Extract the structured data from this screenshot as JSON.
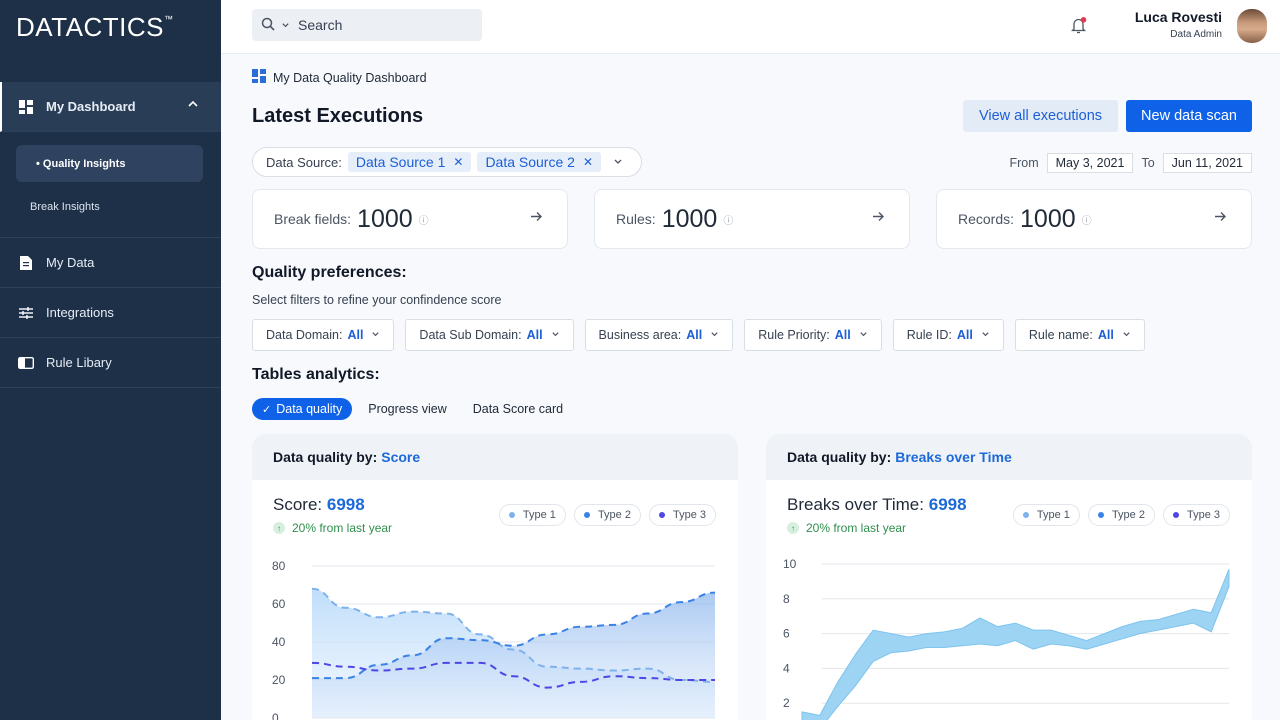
{
  "brand": {
    "logo": "DATACTICS",
    "tm": "™"
  },
  "sidebar": {
    "dashboard_label": "My Dashboard",
    "sub": [
      "Quality Insights",
      "Break Insights"
    ],
    "items": [
      "My Data",
      "Integrations",
      "Rule Libary"
    ]
  },
  "header": {
    "search_label": "Search",
    "user_name": "Luca Rovesti",
    "user_role": "Data Admin"
  },
  "breadcrumb": "My Data Quality Dashboard",
  "page_title": "Latest Executions",
  "buttons": {
    "view_all": "View all executions",
    "new_scan": "New data scan"
  },
  "data_source": {
    "label": "Data Source:",
    "chips": [
      "Data Source 1",
      "Data Source 2"
    ]
  },
  "dates": {
    "from_label": "From",
    "from": "May 3, 2021",
    "to_label": "To",
    "to": "Jun 11, 2021"
  },
  "stats": [
    {
      "label": "Break fields:",
      "value": "1000"
    },
    {
      "label": "Rules:",
      "value": "1000"
    },
    {
      "label": "Records:",
      "value": "1000"
    }
  ],
  "quality": {
    "title": "Quality preferences:",
    "subtitle": "Select filters to refine your confindence score"
  },
  "filters": [
    {
      "label": "Data Domain:",
      "value": "All"
    },
    {
      "label": "Data Sub Domain:",
      "value": "All"
    },
    {
      "label": "Business area:",
      "value": "All"
    },
    {
      "label": "Rule Priority:",
      "value": "All"
    },
    {
      "label": "Rule ID:",
      "value": "All"
    },
    {
      "label": "Rule name:",
      "value": "All"
    }
  ],
  "tables": {
    "title": "Tables analytics:",
    "tabs": [
      "Data quality",
      "Progress view",
      "Data Score card"
    ]
  },
  "card1": {
    "head_prefix": "Data quality by:",
    "head_hl": "Score",
    "metric_label": "Score:",
    "metric_value": "6998",
    "trend": "20% from last year"
  },
  "card2": {
    "head_prefix": "Data quality by:",
    "head_hl": "Breaks over Time",
    "metric_label": "Breaks over Time:",
    "metric_value": "6998",
    "trend": "20% from last year"
  },
  "legend": [
    "Type 1",
    "Type 2",
    "Type 3"
  ],
  "colors": {
    "accent": "#0f62e8",
    "sidebar": "#1e3048",
    "type1": "#7fb1ec",
    "type2": "#3b82e6",
    "type3": "#4f46e5",
    "trend": "#2f8f4e"
  },
  "chart_data": [
    {
      "type": "area",
      "title": "Score",
      "yticks": [
        0,
        20,
        40,
        60,
        80
      ],
      "ylim": [
        0,
        80
      ],
      "x": [
        0,
        1,
        2,
        3,
        4,
        5,
        6,
        7,
        8,
        9,
        10,
        11,
        12
      ],
      "series": [
        {
          "name": "Type 1",
          "values": [
            68,
            58,
            53,
            56,
            55,
            44,
            36,
            27,
            26,
            25,
            26,
            20,
            19
          ]
        },
        {
          "name": "Type 2",
          "values": [
            21,
            21,
            28,
            33,
            42,
            41,
            38,
            44,
            48,
            49,
            55,
            61,
            66
          ]
        },
        {
          "name": "Type 3",
          "values": [
            29,
            27,
            25,
            26,
            29,
            29,
            22,
            16,
            19,
            22,
            21,
            20,
            20
          ]
        }
      ]
    },
    {
      "type": "area",
      "title": "Breaks over Time",
      "yticks": [
        2,
        4,
        6,
        8,
        10
      ],
      "ylim": [
        0,
        10
      ],
      "x": [
        0,
        1,
        2,
        3,
        4,
        5,
        6,
        7,
        8,
        9,
        10,
        11,
        12,
        13,
        14,
        15,
        16,
        17,
        18,
        19,
        20,
        21,
        22,
        23,
        24
      ],
      "band_upper": [
        1.5,
        1.3,
        3.2,
        4.8,
        6.2,
        6.0,
        5.8,
        6.0,
        6.1,
        6.3,
        6.9,
        6.4,
        6.6,
        6.2,
        6.2,
        5.9,
        5.6,
        6.0,
        6.4,
        6.7,
        6.8,
        7.1,
        7.4,
        7.2,
        9.7
      ],
      "band_lower": [
        0.0,
        0.5,
        1.8,
        3.0,
        4.4,
        4.9,
        5.0,
        5.2,
        5.2,
        5.3,
        5.4,
        5.3,
        5.6,
        5.1,
        5.4,
        5.3,
        5.1,
        5.4,
        5.7,
        6.0,
        6.2,
        6.4,
        6.6,
        6.1,
        8.7
      ]
    }
  ]
}
